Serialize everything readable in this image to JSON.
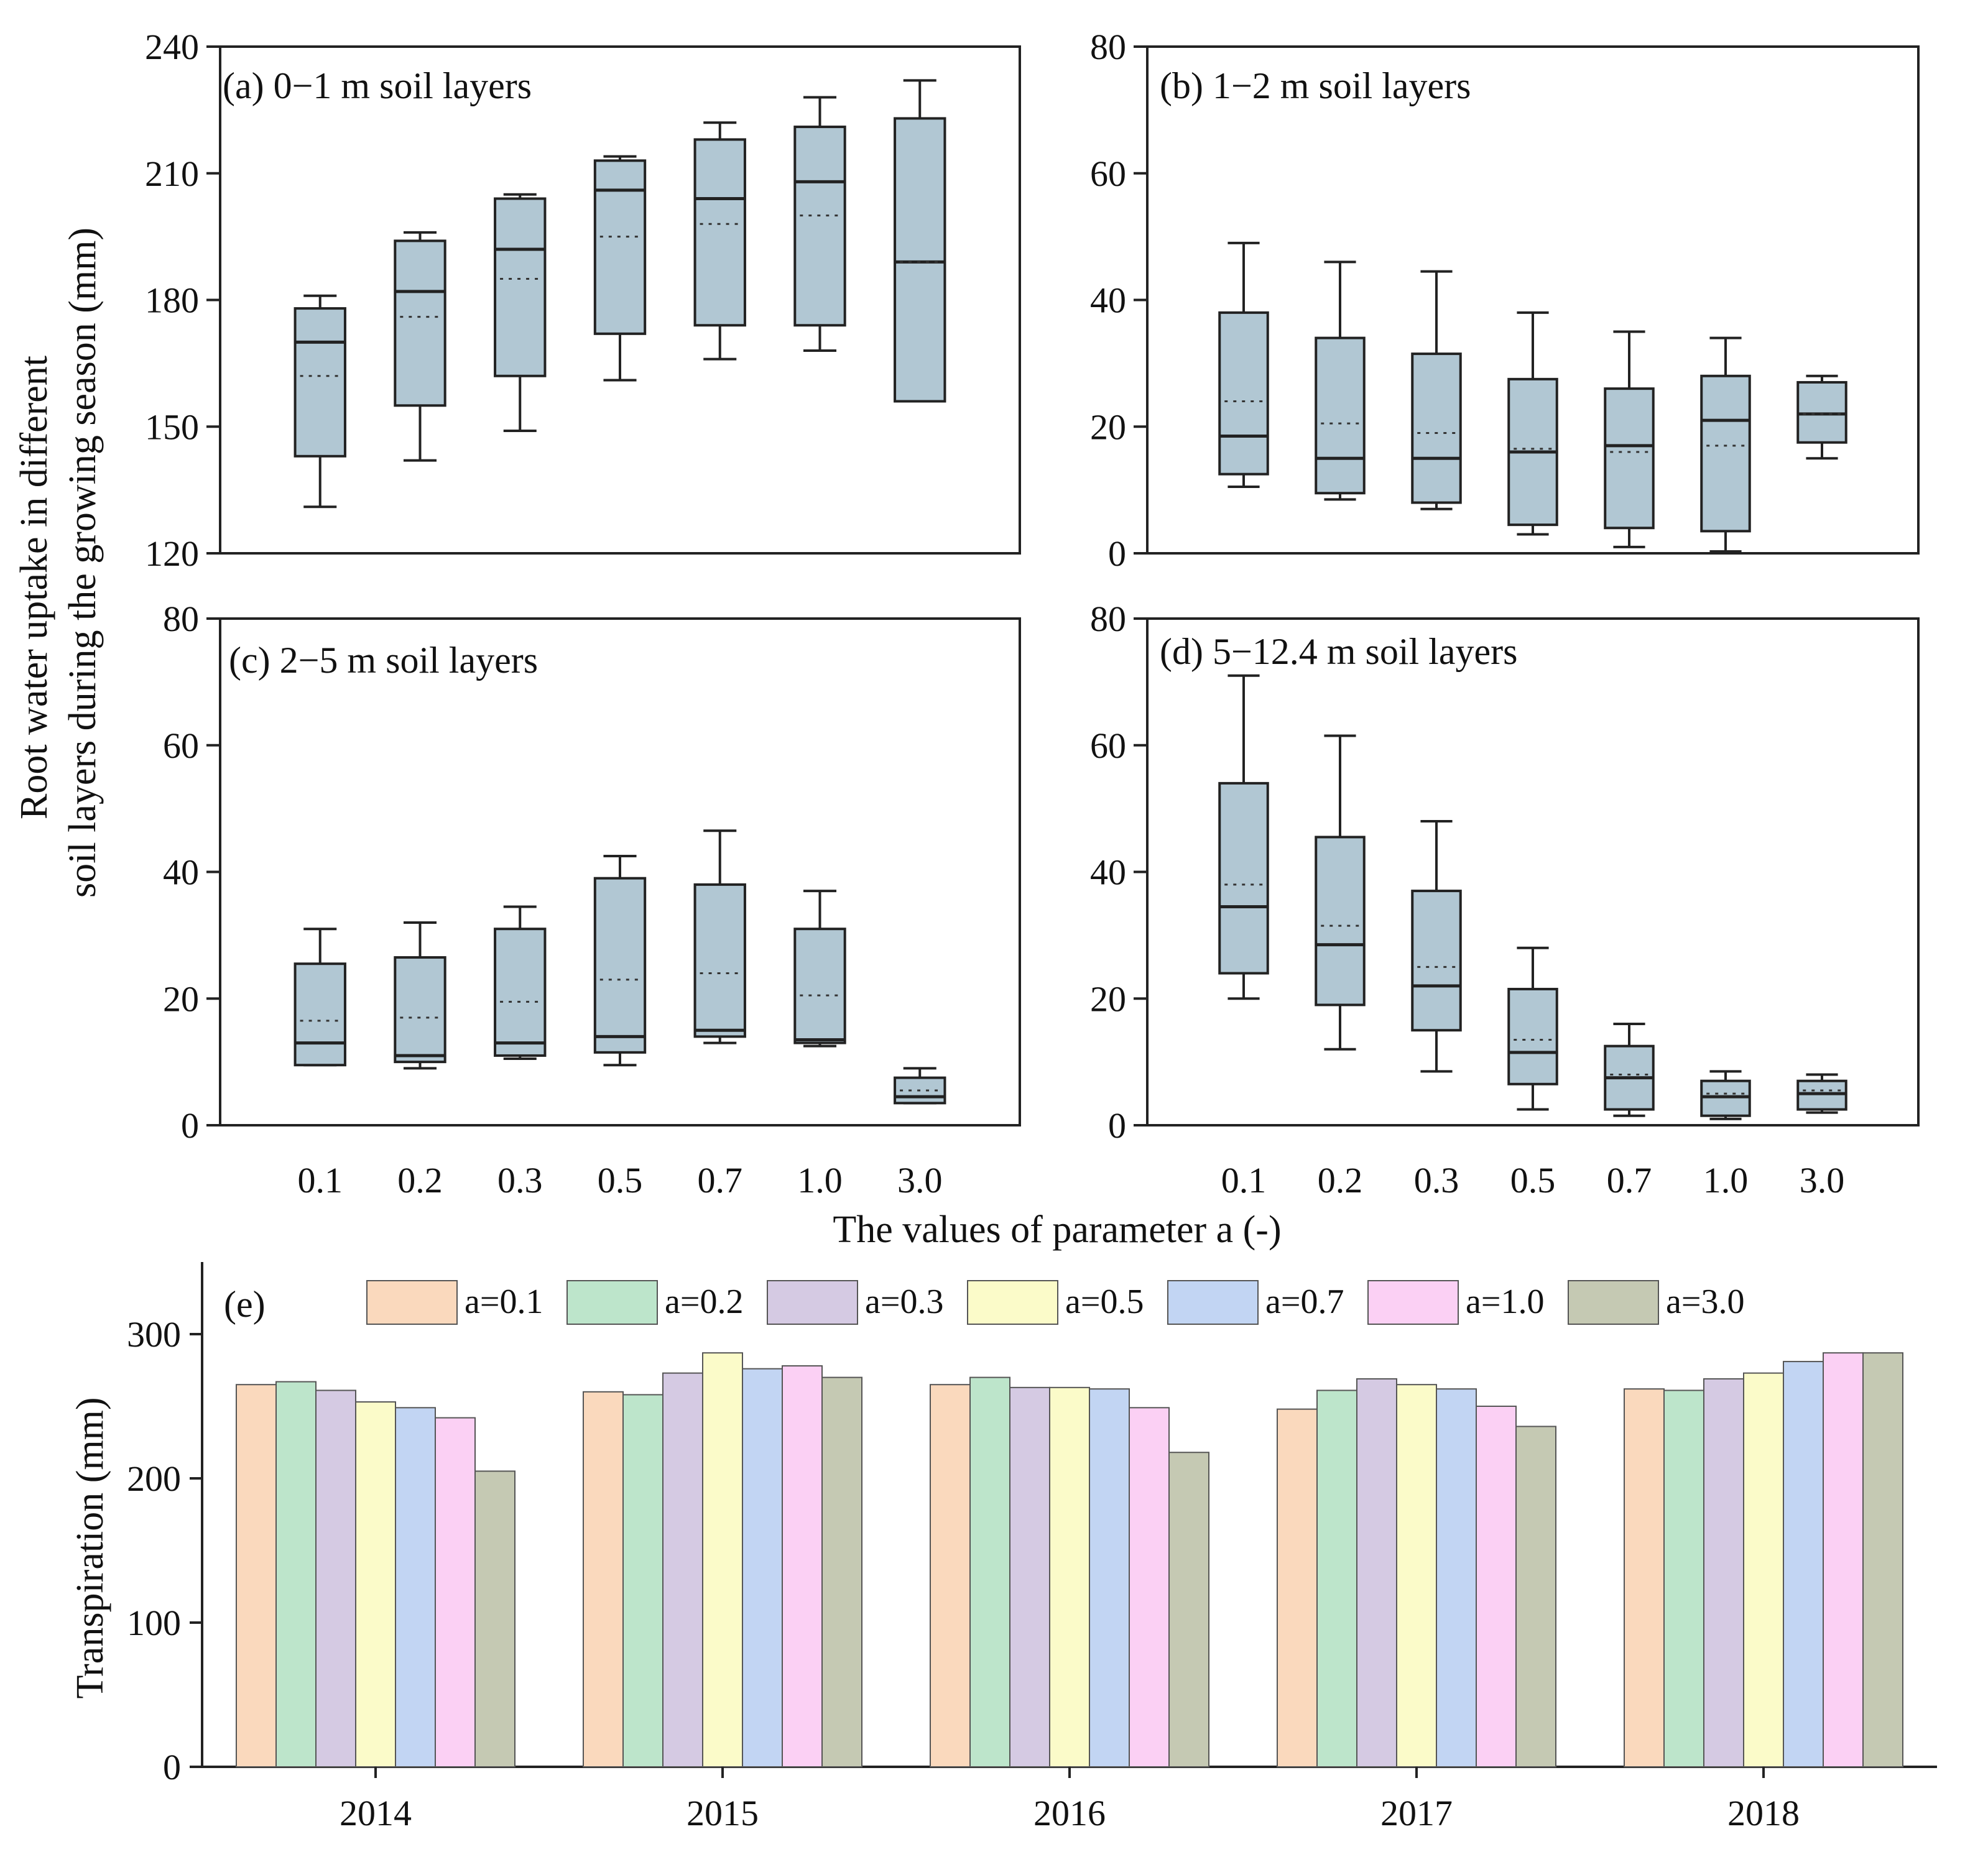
{
  "chart_data": [
    {
      "panel": "a",
      "type": "box",
      "title": "(a) 0−1 m soil layers",
      "categories": [
        "0.1",
        "0.2",
        "0.3",
        "0.5",
        "0.7",
        "1.0",
        "3.0"
      ],
      "ylim": [
        120,
        240
      ],
      "yticks": [
        "120",
        "150",
        "180",
        "210",
        "240"
      ],
      "box_color": "#b1c7d3",
      "boxes": [
        {
          "min": 131,
          "q1": 143,
          "median": 170,
          "mean": 162,
          "q3": 178,
          "max": 181
        },
        {
          "min": 142,
          "q1": 155,
          "median": 182,
          "mean": 176,
          "q3": 194,
          "max": 196
        },
        {
          "min": 149,
          "q1": 162,
          "median": 192,
          "mean": 185,
          "q3": 204,
          "max": 205
        },
        {
          "min": 161,
          "q1": 172,
          "median": 206,
          "mean": 195,
          "q3": 213,
          "max": 214
        },
        {
          "min": 166,
          "q1": 174,
          "median": 204,
          "mean": 198,
          "q3": 218,
          "max": 222
        },
        {
          "min": 168,
          "q1": 174,
          "median": 208,
          "mean": 200,
          "q3": 221,
          "max": 228
        },
        {
          "min": 156,
          "q1": 156,
          "median": 189,
          "mean": 189,
          "q3": 223,
          "max": 232
        }
      ]
    },
    {
      "panel": "b",
      "type": "box",
      "title": "(b) 1−2 m soil layers",
      "categories": [
        "0.1",
        "0.2",
        "0.3",
        "0.5",
        "0.7",
        "1.0",
        "3.0"
      ],
      "ylim": [
        0,
        80
      ],
      "yticks": [
        "0",
        "20",
        "40",
        "60",
        "80"
      ],
      "box_color": "#b1c7d3",
      "boxes": [
        {
          "min": 10.5,
          "q1": 12.5,
          "median": 18.5,
          "mean": 24,
          "q3": 38,
          "max": 49
        },
        {
          "min": 8.5,
          "q1": 9.5,
          "median": 15,
          "mean": 20.5,
          "q3": 34,
          "max": 46
        },
        {
          "min": 7,
          "q1": 8,
          "median": 15,
          "mean": 19,
          "q3": 31.5,
          "max": 44.5
        },
        {
          "min": 3,
          "q1": 4.5,
          "median": 16,
          "mean": 16.5,
          "q3": 27.5,
          "max": 38
        },
        {
          "min": 1,
          "q1": 4,
          "median": 17,
          "mean": 16,
          "q3": 26,
          "max": 35
        },
        {
          "min": 0.3,
          "q1": 3.5,
          "median": 21,
          "mean": 17,
          "q3": 28,
          "max": 34
        },
        {
          "min": 15,
          "q1": 17.5,
          "median": 22,
          "mean": 22,
          "q3": 27,
          "max": 28
        }
      ]
    },
    {
      "panel": "c",
      "type": "box",
      "title": "(c) 2−5 m soil layers",
      "categories": [
        "0.1",
        "0.2",
        "0.3",
        "0.5",
        "0.7",
        "1.0",
        "3.0"
      ],
      "ylim": [
        0,
        80
      ],
      "yticks": [
        "0",
        "20",
        "40",
        "60",
        "80"
      ],
      "box_color": "#b1c7d3",
      "boxes": [
        {
          "min": 9.5,
          "q1": 9.5,
          "median": 13,
          "mean": 16.5,
          "q3": 25.5,
          "max": 31
        },
        {
          "min": 9,
          "q1": 10,
          "median": 11,
          "mean": 17,
          "q3": 26.5,
          "max": 32
        },
        {
          "min": 10.5,
          "q1": 11,
          "median": 13,
          "mean": 19.5,
          "q3": 31,
          "max": 34.5
        },
        {
          "min": 9.5,
          "q1": 11.5,
          "median": 14,
          "mean": 23,
          "q3": 39,
          "max": 42.5
        },
        {
          "min": 13,
          "q1": 14,
          "median": 15,
          "mean": 24,
          "q3": 38,
          "max": 46.5
        },
        {
          "min": 12.5,
          "q1": 13,
          "median": 13.5,
          "mean": 20.5,
          "q3": 31,
          "max": 37
        },
        {
          "min": 3.5,
          "q1": 3.5,
          "median": 4.5,
          "mean": 5.5,
          "q3": 7.5,
          "max": 9
        }
      ]
    },
    {
      "panel": "d",
      "type": "box",
      "title": "(d) 5−12.4 m soil layers",
      "categories": [
        "0.1",
        "0.2",
        "0.3",
        "0.5",
        "0.7",
        "1.0",
        "3.0"
      ],
      "ylim": [
        0,
        80
      ],
      "yticks": [
        "0",
        "20",
        "40",
        "60",
        "80"
      ],
      "box_color": "#b1c7d3",
      "boxes": [
        {
          "min": 20,
          "q1": 24,
          "median": 34.5,
          "mean": 38,
          "q3": 54,
          "max": 71
        },
        {
          "min": 12,
          "q1": 19,
          "median": 28.5,
          "mean": 31.5,
          "q3": 45.5,
          "max": 61.5
        },
        {
          "min": 8.5,
          "q1": 15,
          "median": 22,
          "mean": 25,
          "q3": 37,
          "max": 48
        },
        {
          "min": 2.5,
          "q1": 6.5,
          "median": 11.5,
          "mean": 13.5,
          "q3": 21.5,
          "max": 28
        },
        {
          "min": 1.5,
          "q1": 2.5,
          "median": 7.5,
          "mean": 8,
          "q3": 12.5,
          "max": 16
        },
        {
          "min": 1,
          "q1": 1.5,
          "median": 4.5,
          "mean": 5,
          "q3": 7,
          "max": 8.5
        },
        {
          "min": 2,
          "q1": 2.5,
          "median": 5,
          "mean": 5.5,
          "q3": 7,
          "max": 8
        }
      ]
    },
    {
      "panel": "e",
      "type": "bar",
      "title": "(e)",
      "ylabel": "Transpiration (mm)",
      "categories": [
        "2014",
        "2015",
        "2016",
        "2017",
        "2018"
      ],
      "ylim": [
        0,
        350
      ],
      "yticks": [
        "0",
        "100",
        "200",
        "300"
      ],
      "legend_position": "top",
      "series": [
        {
          "name": "a=0.1",
          "color": "#fad9bd",
          "values": [
            265,
            260,
            265,
            248,
            262
          ]
        },
        {
          "name": "a=0.2",
          "color": "#bde5cb",
          "values": [
            267,
            258,
            270,
            261,
            261
          ]
        },
        {
          "name": "a=0.3",
          "color": "#d5cae3",
          "values": [
            261,
            273,
            263,
            269,
            269
          ]
        },
        {
          "name": "a=0.5",
          "color": "#fbfbc9",
          "values": [
            253,
            287,
            263,
            265,
            273
          ]
        },
        {
          "name": "a=0.7",
          "color": "#c2d5f3",
          "values": [
            249,
            276,
            262,
            262,
            281
          ]
        },
        {
          "name": "a=1.0",
          "color": "#fbd0f4",
          "values": [
            242,
            278,
            249,
            250,
            287
          ]
        },
        {
          "name": "a=3.0",
          "color": "#c5c9b3",
          "values": [
            205,
            270,
            218,
            236,
            287
          ]
        }
      ]
    }
  ],
  "shared": {
    "ylabel_line1": "Root water uptake in different",
    "ylabel_line2": "soil layers during the growing season (mm)",
    "xlabel": "The values of parameter a (-)"
  }
}
